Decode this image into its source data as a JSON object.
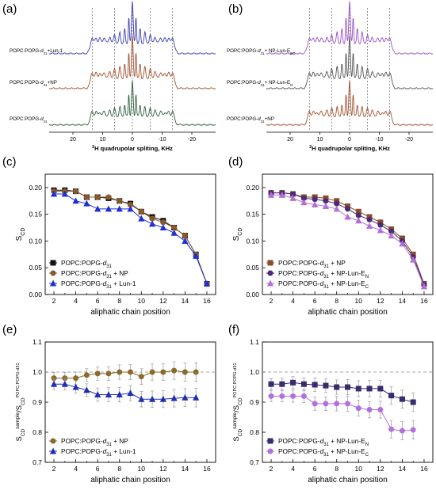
{
  "panel_labels": [
    "(a)",
    "(b)",
    "(c)",
    "(d)",
    "(e)",
    "(f)"
  ],
  "chart_data": [
    {
      "panel": "(a)",
      "type": "line",
      "xlabel": "²H quadrupolar spliting, KHz",
      "xlim": [
        28,
        -28
      ],
      "xticks": [
        "20",
        "10",
        "0",
        "-10",
        "-20"
      ],
      "xtick_values": [
        20,
        10,
        0,
        -10,
        -20
      ],
      "reference_lines": [
        13.5,
        6,
        0,
        -6,
        -13.5
      ],
      "series": [
        {
          "name": "POPC:POPG-d31+Lun-1",
          "color": "#3a3fb0"
        },
        {
          "name": "POPC:POPG-d31+NP",
          "color": "#a0522d"
        },
        {
          "name": "POPC:POPG-d31",
          "color": "#2f5f3f"
        }
      ]
    },
    {
      "panel": "(b)",
      "type": "line",
      "xlabel": "²H quadrupolar spliting, KHz",
      "xlim": [
        28,
        -28
      ],
      "xticks": [
        "20",
        "10",
        "0",
        "-10",
        "-20"
      ],
      "xtick_values": [
        20,
        10,
        0,
        -10,
        -20
      ],
      "reference_lines": [
        13.5,
        6,
        0,
        -6,
        -13.5
      ],
      "series": [
        {
          "name": "POPC:POPG-d31+ NP-Lun-EBC",
          "color": "#9a4fc4"
        },
        {
          "name": "POPC:POPG-d31+ NP-Lun-EN",
          "color": "#555555"
        },
        {
          "name": "POPC:POPG-d31+NP",
          "color": "#a0522d"
        }
      ]
    },
    {
      "panel": "(c)",
      "type": "scatter",
      "xlabel": "aliphatic chain position",
      "ylabel": "SCD",
      "xlim": [
        1.2,
        16.8
      ],
      "ylim": [
        0,
        0.225
      ],
      "xticks": [
        2,
        4,
        6,
        8,
        10,
        12,
        14,
        16
      ],
      "yticks": [
        "0.00",
        "0.05",
        "0.10",
        "0.15",
        "0.20"
      ],
      "legend_position": "bottom-left",
      "x": [
        2,
        3,
        4,
        5,
        6,
        7,
        8,
        9,
        10,
        11,
        12,
        13,
        14,
        15,
        16
      ],
      "series": [
        {
          "name": "POPC:POPG-d31",
          "color": "#111111",
          "marker": "square",
          "values": [
            0.195,
            0.195,
            0.193,
            0.182,
            0.182,
            0.18,
            0.175,
            0.17,
            0.155,
            0.145,
            0.138,
            0.125,
            0.11,
            0.075,
            0.02
          ]
        },
        {
          "name": "POPC:POPG-d31 + NP",
          "color": "#8b5a2b",
          "marker": "circle",
          "values": [
            0.193,
            0.193,
            0.193,
            0.182,
            0.182,
            0.182,
            0.175,
            0.168,
            0.155,
            0.142,
            0.135,
            0.125,
            0.11,
            0.075,
            0.02
          ]
        },
        {
          "name": "POPC:POPG-d31 + Lun-1",
          "color": "#1f2fd0",
          "marker": "triangle",
          "values": [
            0.188,
            0.188,
            0.175,
            0.17,
            0.16,
            0.16,
            0.16,
            0.16,
            0.142,
            0.132,
            0.125,
            0.115,
            0.1,
            0.072,
            0.02
          ]
        }
      ]
    },
    {
      "panel": "(d)",
      "type": "scatter",
      "xlabel": "aliphatic chain position",
      "ylabel": "SCD",
      "xlim": [
        1.2,
        16.8
      ],
      "ylim": [
        0,
        0.225
      ],
      "xticks": [
        2,
        4,
        6,
        8,
        10,
        12,
        14,
        16
      ],
      "yticks": [
        "0.00",
        "0.05",
        "0.10",
        "0.15",
        "0.20"
      ],
      "legend_position": "bottom-left",
      "x": [
        2,
        3,
        4,
        5,
        6,
        7,
        8,
        9,
        10,
        11,
        12,
        13,
        14,
        15,
        16
      ],
      "series": [
        {
          "name": "POPC:POPG-d31 + NP",
          "color": "#8b4a2b",
          "marker": "square",
          "values": [
            0.19,
            0.19,
            0.188,
            0.182,
            0.182,
            0.18,
            0.175,
            0.165,
            0.155,
            0.145,
            0.135,
            0.122,
            0.105,
            0.075,
            0.02
          ]
        },
        {
          "name": "POPC:POPG-d31 + NP-Lun-EN",
          "color": "#4b2a7a",
          "marker": "circle",
          "values": [
            0.19,
            0.19,
            0.188,
            0.18,
            0.178,
            0.175,
            0.17,
            0.16,
            0.148,
            0.14,
            0.13,
            0.118,
            0.1,
            0.07,
            0.018
          ]
        },
        {
          "name": "POPC:POPG-d31 + NP-Lun-EC",
          "color": "#b070d8",
          "marker": "triangle",
          "values": [
            0.186,
            0.186,
            0.18,
            0.172,
            0.168,
            0.165,
            0.16,
            0.145,
            0.138,
            0.128,
            0.12,
            0.11,
            0.095,
            0.065,
            0.015
          ]
        }
      ]
    },
    {
      "panel": "(e)",
      "type": "scatter",
      "xlabel": "aliphatic chain position",
      "ylabel": "SCD sample/SCD POPC:POPG-d31",
      "xlim": [
        1.2,
        16.8
      ],
      "ylim": [
        0.7,
        1.1
      ],
      "xticks": [
        2,
        4,
        6,
        8,
        10,
        12,
        14,
        16
      ],
      "yticks": [
        "0.7",
        "0.8",
        "0.9",
        "1.0",
        "1.1"
      ],
      "reference_lines": [
        1.0
      ],
      "legend_position": "bottom-left",
      "x": [
        2,
        3,
        4,
        5,
        6,
        7,
        8,
        9,
        10,
        11,
        12,
        13,
        14,
        15
      ],
      "series": [
        {
          "name": "POPC:POPG-d31 + NP",
          "color": "#8b6a2b",
          "marker": "circle",
          "values": [
            0.98,
            0.98,
            0.98,
            0.99,
            0.995,
            0.995,
            1.0,
            1.0,
            0.985,
            1.0,
            1.0,
            1.005,
            1.0,
            1.0
          ]
        },
        {
          "name": "POPC:POPG-d31 + Lun-1",
          "color": "#1f2fb0",
          "marker": "triangle",
          "values": [
            0.96,
            0.96,
            0.95,
            0.94,
            0.925,
            0.925,
            0.925,
            0.93,
            0.91,
            0.91,
            0.91,
            0.913,
            0.915,
            0.915
          ]
        }
      ]
    },
    {
      "panel": "(f)",
      "type": "scatter",
      "xlabel": "aliphatic chain position",
      "ylabel": "SCD sample/SCD POPC:POPG-d31",
      "xlim": [
        1.2,
        16.8
      ],
      "ylim": [
        0.7,
        1.1
      ],
      "xticks": [
        2,
        4,
        6,
        8,
        10,
        12,
        14,
        16
      ],
      "yticks": [
        "0.7",
        "0.8",
        "0.9",
        "1.0",
        "1.1"
      ],
      "reference_lines": [
        1.0
      ],
      "legend_position": "bottom-left",
      "x": [
        2,
        3,
        4,
        5,
        6,
        7,
        8,
        9,
        10,
        11,
        12,
        13,
        14,
        15
      ],
      "series": [
        {
          "name": "POPC:POPG-d31 + NP-Lun-EN",
          "color": "#3a2a6e",
          "marker": "square",
          "values": [
            0.96,
            0.96,
            0.965,
            0.96,
            0.958,
            0.955,
            0.95,
            0.95,
            0.945,
            0.945,
            0.945,
            0.922,
            0.91,
            0.9
          ]
        },
        {
          "name": "POPC:POPG-d31 + NP-Lun-EC",
          "color": "#b070e0",
          "marker": "circle",
          "values": [
            0.92,
            0.92,
            0.92,
            0.92,
            0.895,
            0.895,
            0.895,
            0.895,
            0.88,
            0.875,
            0.875,
            0.81,
            0.805,
            0.808
          ]
        }
      ]
    }
  ]
}
